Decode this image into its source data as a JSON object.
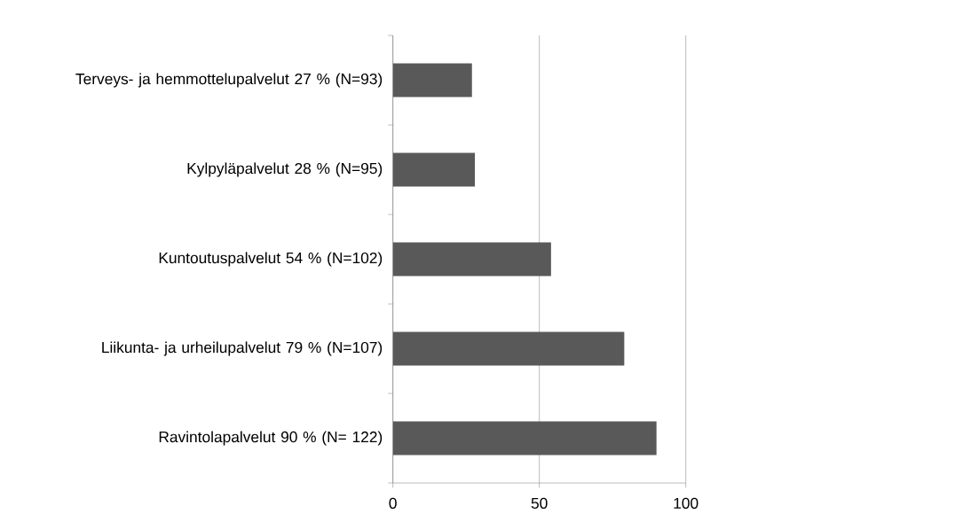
{
  "chart_data": {
    "type": "bar",
    "orientation": "horizontal",
    "categories": [
      "Terveys- ja hemmottelupalvelut 27 % (N=93)",
      "Kylpyläpalvelut 28 % (N=95)",
      "Kuntoutuspalvelut 54 % (N=102)",
      "Liikunta- ja urheilupalvelut 79 % (N=107)",
      "Ravintolapalvelut 90 % (N= 122)"
    ],
    "values": [
      27,
      28,
      54,
      79,
      90
    ],
    "color": "#595959",
    "xlim": [
      0,
      100
    ],
    "xticks": [
      0,
      50,
      100
    ],
    "grid": "x"
  }
}
